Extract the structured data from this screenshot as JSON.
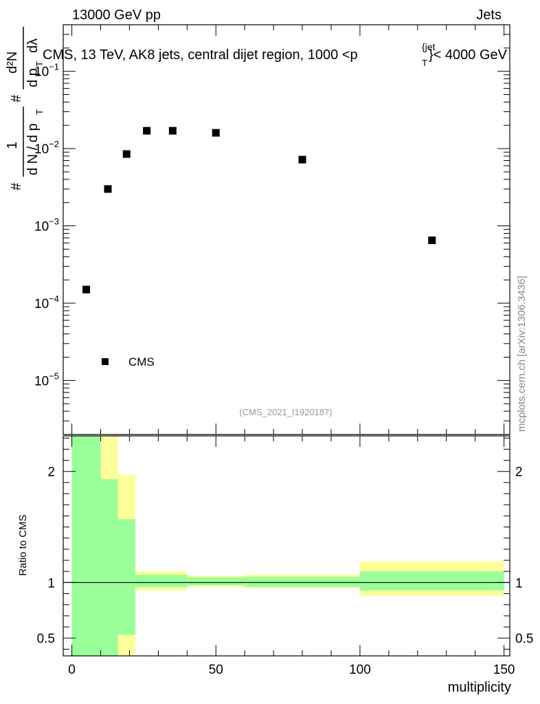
{
  "header": {
    "left": "13000 GeV pp",
    "right": "Jets"
  },
  "upper_panel": {
    "title": "CMS, 13 TeV, AK8 jets, central dijet region, 1000 <p",
    "title_sup": "{jet",
    "title_sub": "T",
    "title_tail": "}< 4000 GeV",
    "analysis_id": "(CMS_2021_I1920187)",
    "ylabel": {
      "num_1": "1",
      "den_1": "d N / d p",
      "sub_T": "T",
      "num_2": "d²N",
      "den_2": "d p",
      "den_2_tail": "dλ",
      "hash": "#"
    },
    "yticks": [
      {
        "exp": "-1",
        "value": 0.1
      },
      {
        "exp": "-2",
        "value": 0.01
      },
      {
        "exp": "-3",
        "value": 0.001
      },
      {
        "exp": "-4",
        "value": 0.0001
      },
      {
        "exp": "-5",
        "value": 1e-05
      }
    ],
    "ytick_base": "10"
  },
  "lower_panel": {
    "ylabel": "Ratio to CMS",
    "yticks": [
      "2",
      "1",
      "0.5"
    ],
    "xlabel": "multiplicity",
    "xticks": [
      "0",
      "50",
      "100",
      "150"
    ]
  },
  "watermark": "mcplots.cern.ch [arXiv:1306.3436]",
  "colors": {
    "band_inner": "#99ff99",
    "band_outer": "#ffff99",
    "marker": "#000000"
  },
  "chart_data": [
    {
      "type": "scatter",
      "xlim": [
        -3,
        152
      ],
      "ylim": [
        2e-06,
        0.4
      ],
      "log_y": true,
      "legend": {
        "position": "lower-left",
        "entries": [
          "CMS"
        ]
      },
      "series": [
        {
          "name": "CMS",
          "marker": "square",
          "points": [
            {
              "x": 5,
              "y": 0.00015
            },
            {
              "x": 12.5,
              "y": 0.003
            },
            {
              "x": 19,
              "y": 0.0085
            },
            {
              "x": 26,
              "y": 0.017
            },
            {
              "x": 35,
              "y": 0.017
            },
            {
              "x": 50,
              "y": 0.016
            },
            {
              "x": 80,
              "y": 0.0072
            },
            {
              "x": 125,
              "y": 0.00065
            }
          ]
        }
      ]
    },
    {
      "type": "area",
      "xlim": [
        -3,
        152
      ],
      "ylim": [
        0.34,
        2.32
      ],
      "ylabel": "Ratio to CMS",
      "xlabel": "multiplicity",
      "reference_line": 1,
      "bands": [
        {
          "x0": 0,
          "x1": 10,
          "inner_lo": 0.34,
          "inner_hi": 2.32,
          "outer_lo": 0.34,
          "outer_hi": 2.32
        },
        {
          "x0": 10,
          "x1": 16,
          "inner_lo": 0.34,
          "inner_hi": 1.93,
          "outer_lo": 0.34,
          "outer_hi": 2.32
        },
        {
          "x0": 16,
          "x1": 22,
          "inner_lo": 0.53,
          "inner_hi": 1.57,
          "outer_lo": 0.34,
          "outer_hi": 1.97
        },
        {
          "x0": 22,
          "x1": 40,
          "inner_lo": 0.96,
          "inner_hi": 1.07,
          "outer_lo": 0.93,
          "outer_hi": 1.1
        },
        {
          "x0": 40,
          "x1": 60,
          "inner_lo": 0.975,
          "inner_hi": 1.045,
          "outer_lo": 0.965,
          "outer_hi": 1.06
        },
        {
          "x0": 60,
          "x1": 100,
          "inner_lo": 0.96,
          "inner_hi": 1.05,
          "outer_lo": 0.95,
          "outer_hi": 1.07
        },
        {
          "x0": 100,
          "x1": 150,
          "inner_lo": 0.93,
          "inner_hi": 1.1,
          "outer_lo": 0.88,
          "outer_hi": 1.19
        }
      ]
    }
  ]
}
